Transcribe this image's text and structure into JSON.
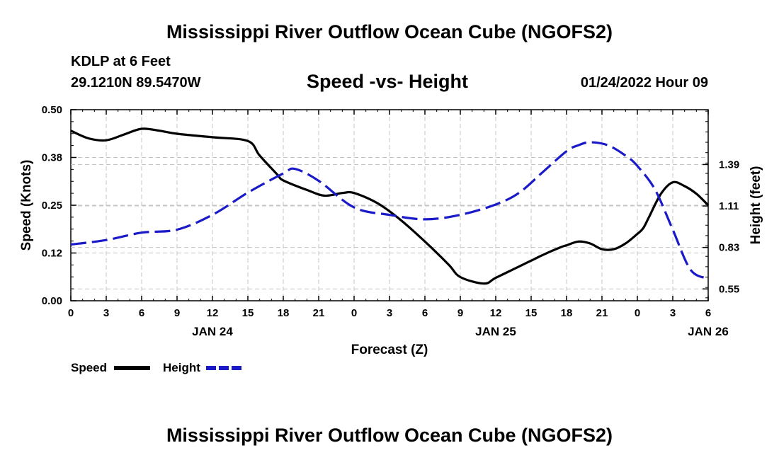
{
  "page": {
    "title": "Mississippi River Outflow Ocean Cube (NGOFS2)",
    "station_name": "KDLP at 6 Feet",
    "station_coords": "29.1210N  89.5470W",
    "subtitle": "Speed -vs- Height",
    "datetime": "01/24/2022 Hour 09",
    "bottom_title": "Mississippi River Outflow Ocean Cube (NGOFS2)"
  },
  "chart_data": {
    "type": "line",
    "title": "Speed -vs- Height",
    "xlabel": "Forecast (Z)",
    "x_tick_labels": [
      "0",
      "3",
      "6",
      "9",
      "12",
      "15",
      "18",
      "21",
      "0",
      "3",
      "6",
      "9",
      "12",
      "15",
      "18",
      "21",
      "0",
      "3",
      "6"
    ],
    "date_labels": [
      {
        "label": "JAN 24",
        "hour": 12
      },
      {
        "label": "JAN 25",
        "hour": 36
      },
      {
        "label": "JAN 26",
        "hour": 54
      }
    ],
    "xlim": [
      0,
      54
    ],
    "left_axis": {
      "label": "Speed (Knots)",
      "ylim": [
        0,
        0.5
      ],
      "ticks": [
        0.0,
        0.125,
        0.25,
        0.375,
        0.5
      ],
      "tick_labels": [
        "0.00",
        "0.12",
        "0.25",
        "0.38",
        "0.50"
      ]
    },
    "right_axis": {
      "label": "Height (feet)",
      "ylim": [
        0.47,
        1.76
      ],
      "ticks": [
        0.55,
        0.83,
        1.11,
        1.39
      ],
      "tick_labels": [
        "0.55",
        "0.83",
        "1.11",
        "1.39"
      ]
    },
    "series": [
      {
        "name": "Speed",
        "axis": "left",
        "color": "#000000",
        "style": "solid",
        "x": [
          0,
          1.5,
          3,
          4.5,
          6,
          7.5,
          9,
          12,
          15,
          16,
          17.5,
          18,
          20,
          21.5,
          23,
          24,
          26,
          28,
          30,
          32,
          33,
          35,
          36,
          38,
          39,
          40,
          41.5,
          42,
          43,
          44,
          45,
          46,
          47,
          48,
          48.5,
          49,
          50,
          51,
          52,
          53,
          54
        ],
        "values": [
          0.445,
          0.425,
          0.42,
          0.435,
          0.45,
          0.445,
          0.437,
          0.428,
          0.418,
          0.38,
          0.33,
          0.315,
          0.29,
          0.275,
          0.282,
          0.282,
          0.255,
          0.21,
          0.155,
          0.095,
          0.062,
          0.045,
          0.06,
          0.09,
          0.105,
          0.12,
          0.14,
          0.145,
          0.155,
          0.15,
          0.135,
          0.135,
          0.15,
          0.175,
          0.19,
          0.22,
          0.28,
          0.31,
          0.3,
          0.28,
          0.25
        ]
      },
      {
        "name": "Height",
        "axis": "right",
        "color": "#1a1ac8",
        "style": "dashed",
        "x": [
          0,
          3,
          6,
          9,
          12,
          15,
          18,
          19,
          21,
          24,
          27,
          30,
          33,
          36,
          38,
          40,
          42,
          43,
          44,
          45.5,
          47,
          48,
          49.5,
          51,
          52.5,
          54
        ],
        "values": [
          0.85,
          0.88,
          0.93,
          0.95,
          1.05,
          1.2,
          1.33,
          1.36,
          1.28,
          1.1,
          1.05,
          1.02,
          1.05,
          1.12,
          1.2,
          1.34,
          1.48,
          1.52,
          1.54,
          1.52,
          1.45,
          1.38,
          1.22,
          0.95,
          0.68,
          0.62
        ]
      }
    ],
    "legend": [
      "Speed",
      "Height"
    ],
    "grid": true
  }
}
